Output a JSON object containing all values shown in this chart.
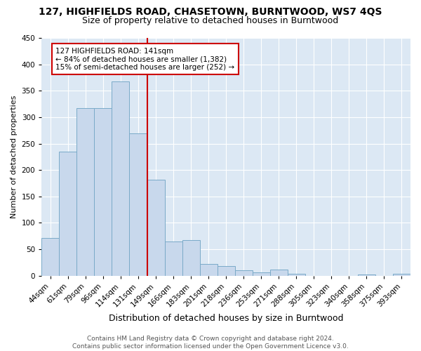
{
  "title": "127, HIGHFIELDS ROAD, CHASETOWN, BURNTWOOD, WS7 4QS",
  "subtitle": "Size of property relative to detached houses in Burntwood",
  "xlabel": "Distribution of detached houses by size in Burntwood",
  "ylabel": "Number of detached properties",
  "categories": [
    "44sqm",
    "61sqm",
    "79sqm",
    "96sqm",
    "114sqm",
    "131sqm",
    "149sqm",
    "166sqm",
    "183sqm",
    "201sqm",
    "218sqm",
    "236sqm",
    "253sqm",
    "271sqm",
    "288sqm",
    "305sqm",
    "323sqm",
    "340sqm",
    "358sqm",
    "375sqm",
    "393sqm"
  ],
  "values": [
    71,
    235,
    317,
    317,
    368,
    270,
    182,
    65,
    68,
    22,
    18,
    10,
    6,
    11,
    4,
    0,
    0,
    0,
    3,
    0,
    4
  ],
  "bar_color": "#c8d8ec",
  "bar_edge_color": "#7aaac8",
  "vline_color": "#cc0000",
  "annotation_text": "127 HIGHFIELDS ROAD: 141sqm\n← 84% of detached houses are smaller (1,382)\n15% of semi-detached houses are larger (252) →",
  "annotation_box_color": "#ffffff",
  "annotation_box_edge": "#cc0000",
  "ylim": [
    0,
    450
  ],
  "yticks": [
    0,
    50,
    100,
    150,
    200,
    250,
    300,
    350,
    400,
    450
  ],
  "plot_bg_color": "#dce8f4",
  "fig_bg_color": "#ffffff",
  "footer": "Contains HM Land Registry data © Crown copyright and database right 2024.\nContains public sector information licensed under the Open Government Licence v3.0.",
  "title_fontsize": 10,
  "subtitle_fontsize": 9,
  "xlabel_fontsize": 9,
  "ylabel_fontsize": 8,
  "tick_fontsize": 7.5,
  "footer_fontsize": 6.5,
  "annot_fontsize": 7.5
}
